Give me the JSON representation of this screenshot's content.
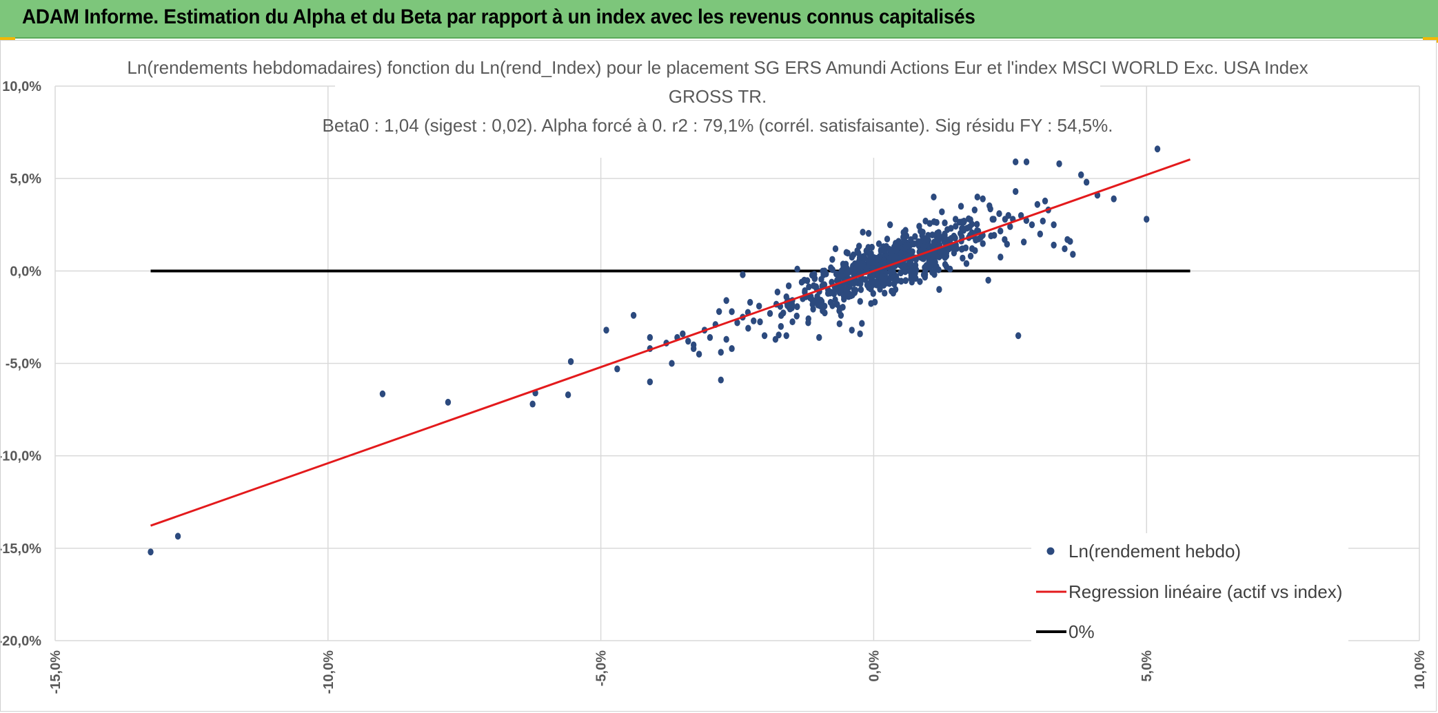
{
  "header": {
    "title": "ADAM Informe. Estimation du Alpha et du Beta par rapport à un index avec les revenus connus capitalisés"
  },
  "colors": {
    "header_bg": "#7dc67b",
    "points": "#2c4a7e",
    "regression": "#e31a1c",
    "zero_line": "#000000",
    "grid": "#d9d9d9"
  },
  "chart_data": {
    "type": "scatter",
    "title_lines": [
      "Ln(rendements hebdomadaires) fonction du Ln(rend_Index) pour le placement SG ERS Amundi Actions Eur et l'index MSCI WORLD Exc. USA Index",
      "GROSS TR.",
      "Beta0 : 1,04 (sigest : 0,02). Alpha forcé à 0. r2 : 79,1% (corrél. satisfaisante). Sig résidu FY : 54,5%."
    ],
    "xlim": [
      -0.15,
      0.1
    ],
    "ylim": [
      -0.2,
      0.1
    ],
    "x_ticks": [
      -0.15,
      -0.1,
      -0.05,
      0.0,
      0.05,
      0.1
    ],
    "x_tick_labels": [
      "-15,0%",
      "-10,0%",
      "-5,0%",
      "0,0%",
      "5,0%",
      "10,0%"
    ],
    "y_ticks": [
      0.1,
      0.05,
      0.0,
      -0.05,
      -0.1,
      -0.15,
      -0.2
    ],
    "y_tick_labels": [
      "10,0%",
      "5,0%",
      "0,0%",
      "-5,0%",
      "-10,0%",
      "-15,0%",
      "-20,0%"
    ],
    "legend": [
      {
        "label": "Ln(rendement hebdo)",
        "kind": "marker"
      },
      {
        "label": "Regression linéaire (actif vs index)",
        "kind": "red-line"
      },
      {
        "label": "0%",
        "kind": "black-line"
      }
    ],
    "regression": {
      "slope": 1.04,
      "intercept": 0.0,
      "x_range": [
        -0.1325,
        0.058
      ]
    },
    "zero_line": {
      "y": 0.0,
      "x_range": [
        -0.1325,
        0.058
      ]
    },
    "cluster": {
      "count": 620,
      "seed": 12345,
      "x_mean": 0.003,
      "x_std": 0.009,
      "slope": 1.04,
      "residual_std": 0.0065
    },
    "series": [
      {
        "name": "Ln(rendement hebdo)",
        "points": [
          [
            -0.1325,
            -0.152
          ],
          [
            -0.1275,
            -0.1435
          ],
          [
            -0.09,
            -0.0665
          ],
          [
            -0.078,
            -0.071
          ],
          [
            -0.0625,
            -0.072
          ],
          [
            -0.062,
            -0.066
          ],
          [
            -0.056,
            -0.067
          ],
          [
            -0.0555,
            -0.049
          ],
          [
            -0.049,
            -0.032
          ],
          [
            -0.047,
            -0.053
          ],
          [
            -0.044,
            -0.024
          ],
          [
            -0.041,
            -0.036
          ],
          [
            -0.041,
            -0.042
          ],
          [
            -0.041,
            -0.06
          ],
          [
            -0.038,
            -0.039
          ],
          [
            -0.037,
            -0.05
          ],
          [
            -0.036,
            -0.036
          ],
          [
            -0.035,
            -0.034
          ],
          [
            -0.034,
            -0.038
          ],
          [
            -0.033,
            -0.04
          ],
          [
            -0.033,
            -0.042
          ],
          [
            -0.032,
            -0.045
          ],
          [
            -0.031,
            -0.032
          ],
          [
            -0.03,
            -0.036
          ],
          [
            -0.029,
            -0.029
          ],
          [
            -0.028,
            -0.044
          ],
          [
            -0.028,
            -0.059
          ],
          [
            -0.027,
            -0.016
          ],
          [
            -0.027,
            -0.037
          ],
          [
            -0.026,
            -0.022
          ],
          [
            -0.026,
            -0.042
          ],
          [
            -0.025,
            -0.028
          ],
          [
            -0.024,
            -0.002
          ],
          [
            -0.024,
            -0.025
          ],
          [
            -0.023,
            -0.031
          ],
          [
            -0.022,
            -0.027
          ],
          [
            -0.021,
            -0.019
          ],
          [
            -0.02,
            -0.035
          ],
          [
            -0.019,
            -0.023
          ],
          [
            -0.018,
            -0.037
          ],
          [
            -0.017,
            -0.03
          ],
          [
            -0.016,
            -0.014
          ],
          [
            -0.016,
            -0.035
          ],
          [
            -0.015,
            -0.02
          ],
          [
            -0.014,
            0.001
          ],
          [
            -0.013,
            -0.015
          ],
          [
            -0.012,
            -0.028
          ],
          [
            -0.011,
            -0.008
          ],
          [
            -0.01,
            -0.036
          ],
          [
            -0.009,
            0.0
          ],
          [
            -0.009,
            -0.019
          ],
          [
            -0.008,
            -0.012
          ],
          [
            -0.007,
            0.012
          ],
          [
            -0.006,
            -0.024
          ],
          [
            -0.005,
            0.01
          ],
          [
            -0.004,
            -0.032
          ],
          [
            -0.003,
            0.011
          ],
          [
            -0.0025,
            -0.034
          ],
          [
            -0.002,
            0.021
          ],
          [
            -0.001,
            -0.008
          ],
          [
            0.0,
            0.002
          ],
          [
            0.001,
            0.006
          ],
          [
            0.002,
            -0.012
          ],
          [
            0.003,
            0.025
          ],
          [
            0.003,
            0.006
          ],
          [
            0.004,
            -0.01
          ],
          [
            0.005,
            0.012
          ],
          [
            0.006,
            0.019
          ],
          [
            0.007,
            -0.006
          ],
          [
            0.008,
            0.015
          ],
          [
            0.009,
            0.021
          ],
          [
            0.0095,
            0.027
          ],
          [
            0.01,
            0.002
          ],
          [
            0.011,
            0.04
          ],
          [
            0.012,
            -0.01
          ],
          [
            0.013,
            0.02
          ],
          [
            0.014,
            0.001
          ],
          [
            0.015,
            0.028
          ],
          [
            0.016,
            0.035
          ],
          [
            0.017,
            0.004
          ],
          [
            0.018,
            0.019
          ],
          [
            0.019,
            0.04
          ],
          [
            0.02,
            0.039
          ],
          [
            0.021,
            -0.005
          ],
          [
            0.022,
            0.028
          ],
          [
            0.023,
            0.031
          ],
          [
            0.024,
            0.017
          ],
          [
            0.025,
            0.024
          ],
          [
            0.026,
            0.043
          ],
          [
            0.026,
            0.059
          ],
          [
            0.0265,
            -0.035
          ],
          [
            0.027,
            0.03
          ],
          [
            0.028,
            0.059
          ],
          [
            0.029,
            0.025
          ],
          [
            0.03,
            0.036
          ],
          [
            0.031,
            0.027
          ],
          [
            0.032,
            0.033
          ],
          [
            0.033,
            0.025
          ],
          [
            0.033,
            0.014
          ],
          [
            0.034,
            0.058
          ],
          [
            0.035,
            0.012
          ],
          [
            0.0355,
            0.017
          ],
          [
            0.036,
            0.016
          ],
          [
            0.0365,
            0.009
          ],
          [
            0.038,
            0.052
          ],
          [
            0.039,
            0.048
          ],
          [
            0.041,
            0.041
          ],
          [
            0.044,
            0.039
          ],
          [
            0.05,
            0.028
          ],
          [
            0.052,
            0.066
          ],
          [
            0.0255,
            0.028
          ],
          [
            0.0305,
            0.02
          ],
          [
            0.0165,
            0.022
          ],
          [
            0.0215,
            0.019
          ],
          [
            0.0185,
            0.033
          ],
          [
            0.0125,
            0.032
          ]
        ]
      }
    ]
  }
}
